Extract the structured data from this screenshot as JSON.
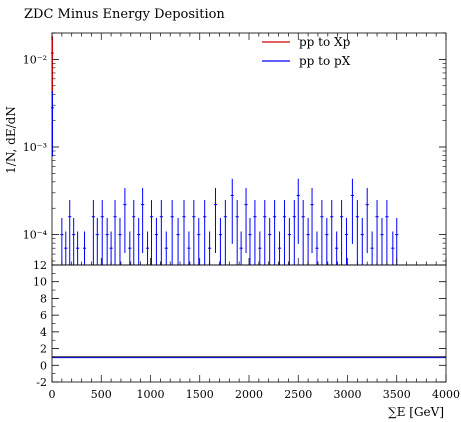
{
  "chart_data": {
    "type": "histogram",
    "title": "ZDC Minus Energy Deposition",
    "xlabel": "∑E [GeV]",
    "ylabel": "1/N, dE/dN",
    "xlim": [
      0,
      4000
    ],
    "top": {
      "yscale": "log",
      "ylim": [
        4.5e-05,
        0.02
      ],
      "yticks": [
        {
          "value": 0.01,
          "label": "10⁻²"
        },
        {
          "value": 0.001,
          "label": "10⁻³"
        },
        {
          "value": 0.0001,
          "label": "10⁻⁴"
        }
      ]
    },
    "bottom": {
      "yscale": "linear",
      "ylim": [
        -2,
        12
      ],
      "yticks": [
        12,
        10,
        8,
        6,
        4,
        2,
        0,
        -2
      ],
      "ratio_value": 1
    },
    "xticks": [
      0,
      500,
      1000,
      1500,
      2000,
      2500,
      3000,
      3500,
      4000
    ],
    "legend": {
      "position": "top-right"
    },
    "series": [
      {
        "name": "pp to Xp",
        "color": "#d00000",
        "points": [
          {
            "x": 5,
            "y": 0.0118
          }
        ]
      },
      {
        "name": "pp to pX",
        "color": "#0000ff",
        "points": [
          {
            "x": 5,
            "y": 0.0028
          },
          {
            "x": 100,
            "y": 0.0001
          },
          {
            "x": 140,
            "y": 7e-05
          },
          {
            "x": 180,
            "y": 0.00016
          },
          {
            "x": 220,
            "y": 0.0001
          },
          {
            "x": 260,
            "y": 7e-05
          },
          {
            "x": 330,
            "y": 7e-05
          },
          {
            "x": 420,
            "y": 0.00016
          },
          {
            "x": 460,
            "y": 0.0001
          },
          {
            "x": 510,
            "y": 0.00016
          },
          {
            "x": 560,
            "y": 0.0001
          },
          {
            "x": 600,
            "y": 7e-05
          },
          {
            "x": 640,
            "y": 0.00016
          },
          {
            "x": 690,
            "y": 0.0001
          },
          {
            "x": 740,
            "y": 0.00022
          },
          {
            "x": 790,
            "y": 7e-05
          },
          {
            "x": 830,
            "y": 0.00016
          },
          {
            "x": 880,
            "y": 0.0001
          },
          {
            "x": 920,
            "y": 0.00022
          },
          {
            "x": 970,
            "y": 7e-05
          },
          {
            "x": 1010,
            "y": 0.00016
          },
          {
            "x": 1060,
            "y": 0.0001
          },
          {
            "x": 1110,
            "y": 0.00016
          },
          {
            "x": 1160,
            "y": 7e-05
          },
          {
            "x": 1220,
            "y": 0.00016
          },
          {
            "x": 1280,
            "y": 0.0001
          },
          {
            "x": 1340,
            "y": 0.00016
          },
          {
            "x": 1390,
            "y": 7e-05
          },
          {
            "x": 1440,
            "y": 0.00016
          },
          {
            "x": 1490,
            "y": 0.0001
          },
          {
            "x": 1550,
            "y": 0.00016
          },
          {
            "x": 1600,
            "y": 7e-05
          },
          {
            "x": 1660,
            "y": 0.00022
          },
          {
            "x": 1710,
            "y": 0.0001
          },
          {
            "x": 1760,
            "y": 0.00016
          },
          {
            "x": 1830,
            "y": 0.00028
          },
          {
            "x": 1880,
            "y": 0.00016
          },
          {
            "x": 1920,
            "y": 7e-05
          },
          {
            "x": 1970,
            "y": 0.00022
          },
          {
            "x": 2010,
            "y": 0.0001
          },
          {
            "x": 2060,
            "y": 0.00016
          },
          {
            "x": 2110,
            "y": 7e-05
          },
          {
            "x": 2160,
            "y": 0.00016
          },
          {
            "x": 2210,
            "y": 0.0001
          },
          {
            "x": 2260,
            "y": 0.00016
          },
          {
            "x": 2310,
            "y": 7e-05
          },
          {
            "x": 2360,
            "y": 0.00016
          },
          {
            "x": 2410,
            "y": 0.0001
          },
          {
            "x": 2460,
            "y": 0.00016
          },
          {
            "x": 2500,
            "y": 0.00028
          },
          {
            "x": 2550,
            "y": 0.00016
          },
          {
            "x": 2600,
            "y": 0.0001
          },
          {
            "x": 2640,
            "y": 0.00022
          },
          {
            "x": 2690,
            "y": 7e-05
          },
          {
            "x": 2740,
            "y": 0.00016
          },
          {
            "x": 2790,
            "y": 0.0001
          },
          {
            "x": 2840,
            "y": 0.00016
          },
          {
            "x": 2890,
            "y": 7e-05
          },
          {
            "x": 2940,
            "y": 0.00016
          },
          {
            "x": 2990,
            "y": 0.0001
          },
          {
            "x": 3050,
            "y": 0.00028
          },
          {
            "x": 3100,
            "y": 0.00016
          },
          {
            "x": 3150,
            "y": 0.0001
          },
          {
            "x": 3200,
            "y": 0.00022
          },
          {
            "x": 3250,
            "y": 7e-05
          },
          {
            "x": 3300,
            "y": 0.00016
          },
          {
            "x": 3350,
            "y": 0.0001
          },
          {
            "x": 3400,
            "y": 0.00016
          },
          {
            "x": 3460,
            "y": 7e-05
          },
          {
            "x": 3500,
            "y": 0.0001
          }
        ]
      }
    ]
  }
}
